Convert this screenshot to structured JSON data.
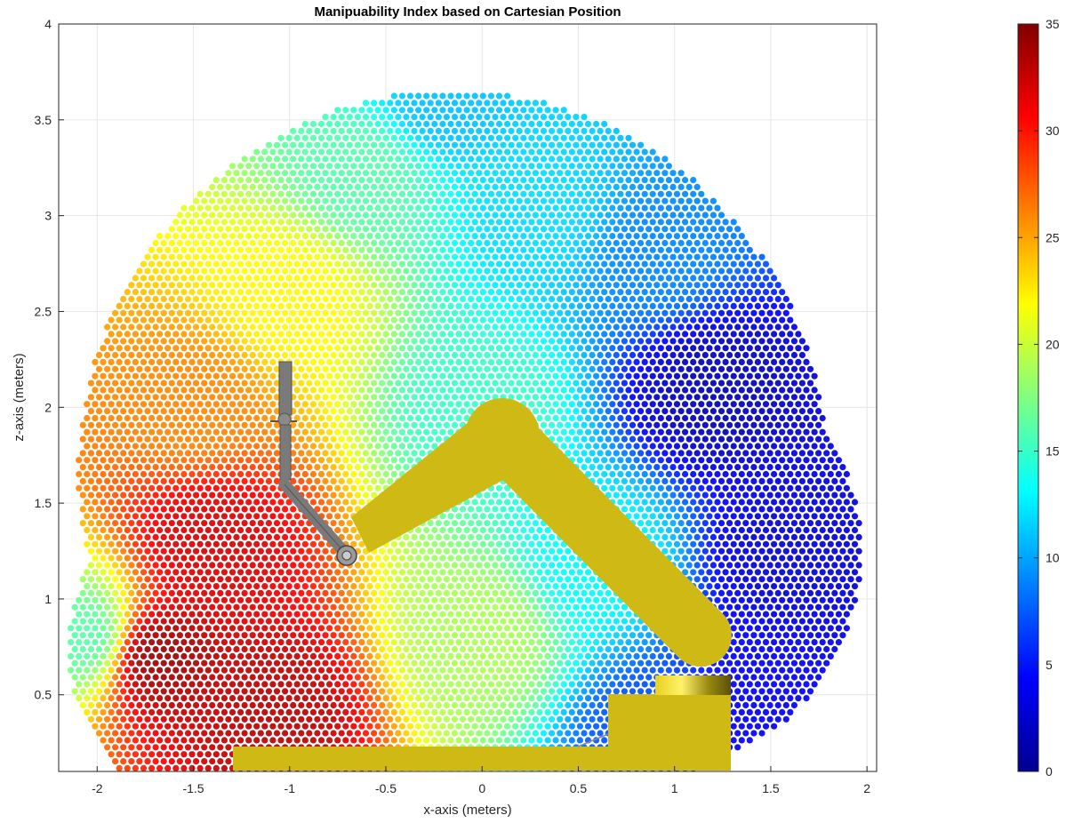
{
  "chart_data": {
    "type": "scatter",
    "title": "Manipuability Index based on Cartesian Position",
    "xlabel": "x-axis (meters)",
    "ylabel": "z-axis (meters)",
    "xlim": [
      -2.2,
      2.05
    ],
    "ylim": [
      0.1,
      4
    ],
    "xticks": [
      -2,
      -1.5,
      -1,
      -0.5,
      0,
      0.5,
      1,
      1.5,
      2
    ],
    "xtick_labels": [
      "-2",
      "-1.5",
      "-1",
      "-0.5",
      "0",
      "0.5",
      "1",
      "1.5",
      "2"
    ],
    "yticks": [
      0.5,
      1,
      1.5,
      2,
      2.5,
      3,
      3.5,
      4
    ],
    "ytick_labels": [
      "0.5",
      "1",
      "1.5",
      "2",
      "2.5",
      "3",
      "3.5",
      "4"
    ],
    "grid": true,
    "colormap": "jet",
    "colorbar": {
      "range": [
        0,
        35
      ],
      "ticks": [
        0,
        5,
        10,
        15,
        20,
        25,
        30,
        35
      ],
      "tick_labels": [
        "0",
        "5",
        "10",
        "15",
        "20",
        "25",
        "30",
        "35"
      ]
    },
    "point_cloud": {
      "description_values": "manipulability index at sampled end-effector positions",
      "samples": [
        {
          "x": -1.4,
          "z": 1.3,
          "value": 32
        },
        {
          "x": -1.7,
          "z": 0.7,
          "value": 34
        },
        {
          "x": -1.1,
          "z": 0.4,
          "value": 33
        },
        {
          "x": -1.5,
          "z": 2.0,
          "value": 26
        },
        {
          "x": -1.0,
          "z": 2.6,
          "value": 22
        },
        {
          "x": -0.6,
          "z": 3.2,
          "value": 16
        },
        {
          "x": -0.2,
          "z": 3.6,
          "value": 11
        },
        {
          "x": 0.3,
          "z": 3.0,
          "value": 12
        },
        {
          "x": 0.0,
          "z": 2.0,
          "value": 15
        },
        {
          "x": 0.0,
          "z": 0.8,
          "value": 19
        },
        {
          "x": 0.6,
          "z": 1.2,
          "value": 13
        },
        {
          "x": 0.9,
          "z": 2.8,
          "value": 9
        },
        {
          "x": 1.2,
          "z": 2.1,
          "value": 2
        },
        {
          "x": 1.6,
          "z": 1.2,
          "value": 3
        },
        {
          "x": 1.4,
          "z": 0.4,
          "value": 4
        },
        {
          "x": -2.05,
          "z": 0.8,
          "value": 16
        },
        {
          "x": 0.9,
          "z": 0.3,
          "value": 7
        }
      ]
    },
    "robot_color": "#cfb914",
    "gripper_color": "#7a7a7a"
  }
}
